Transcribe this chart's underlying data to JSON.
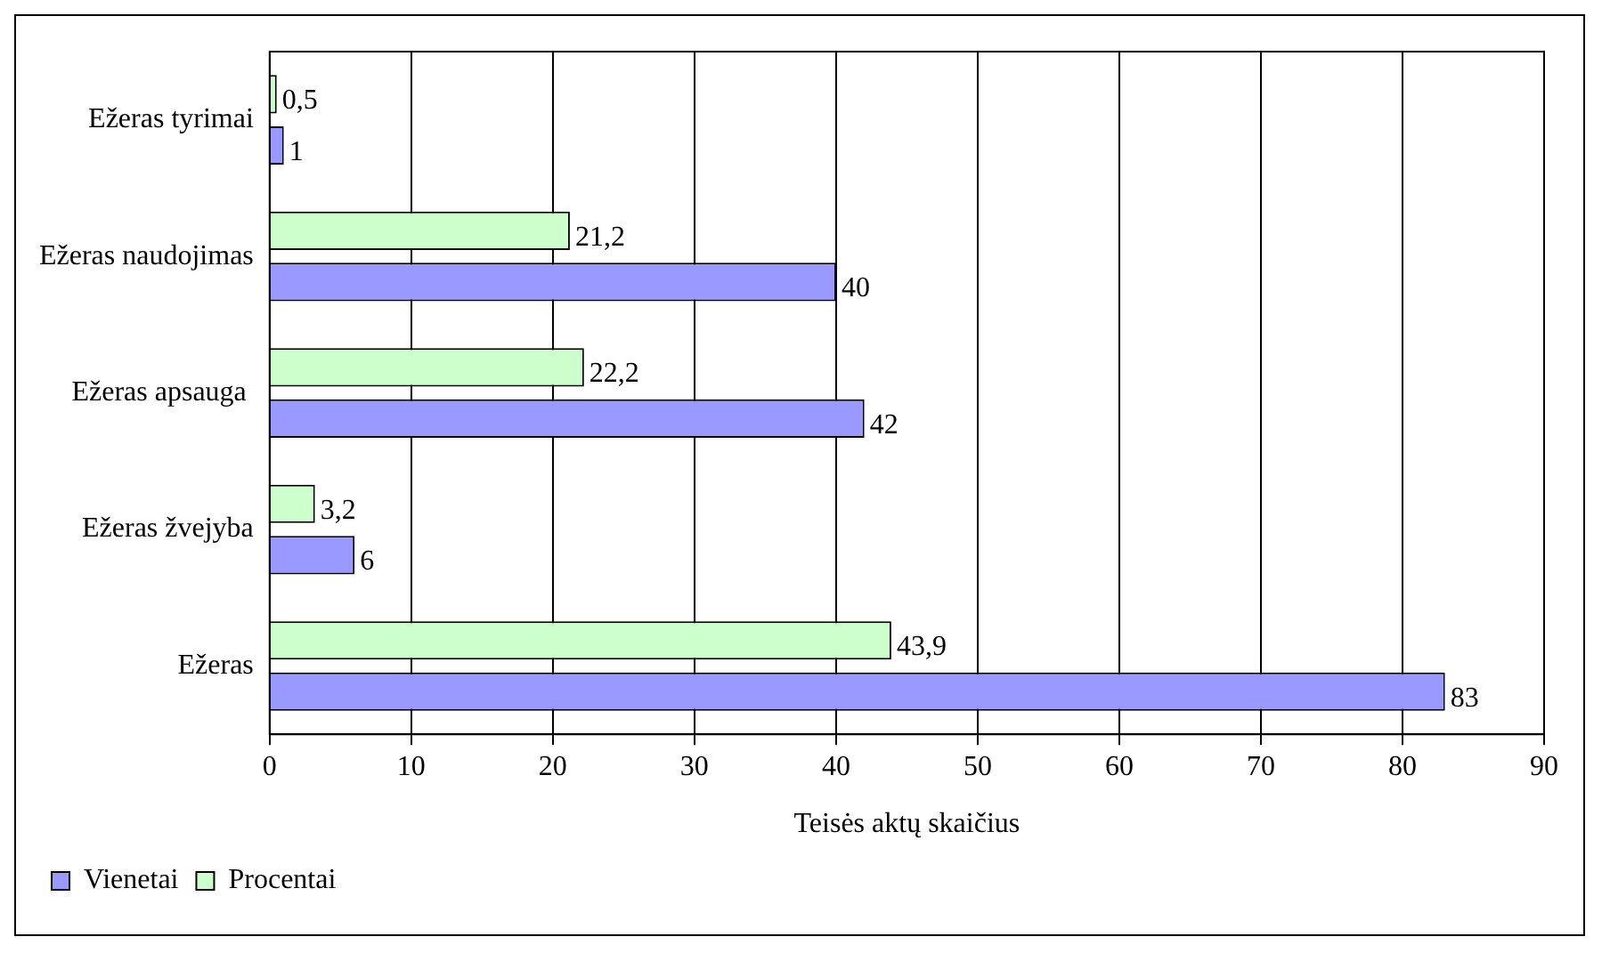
{
  "chart_data": {
    "type": "bar",
    "orientation": "horizontal",
    "xlabel": "Teisės aktų skaičius",
    "categories": [
      "Ežeras tyrimai",
      "Ežeras naudojimas",
      "Ežeras apsauga ",
      "Ežeras žvejyba",
      "Ežeras"
    ],
    "series": [
      {
        "name": "Vienetai",
        "color": "#9999ff",
        "values": [
          1,
          40,
          42,
          6,
          83
        ],
        "value_labels": [
          "1",
          "40",
          "42",
          "6",
          "83"
        ]
      },
      {
        "name": "Procentai",
        "color": "#ccffcc",
        "values": [
          0.5,
          21.2,
          22.2,
          3.2,
          43.9
        ],
        "value_labels": [
          "0,5",
          "21,2",
          "22,2",
          "3,2",
          "43,9"
        ]
      }
    ],
    "xlim": [
      0,
      90
    ],
    "xticks": [
      0,
      10,
      20,
      30,
      40,
      50,
      60,
      70,
      80,
      90
    ],
    "grid": "x",
    "legend": "bottom left"
  }
}
